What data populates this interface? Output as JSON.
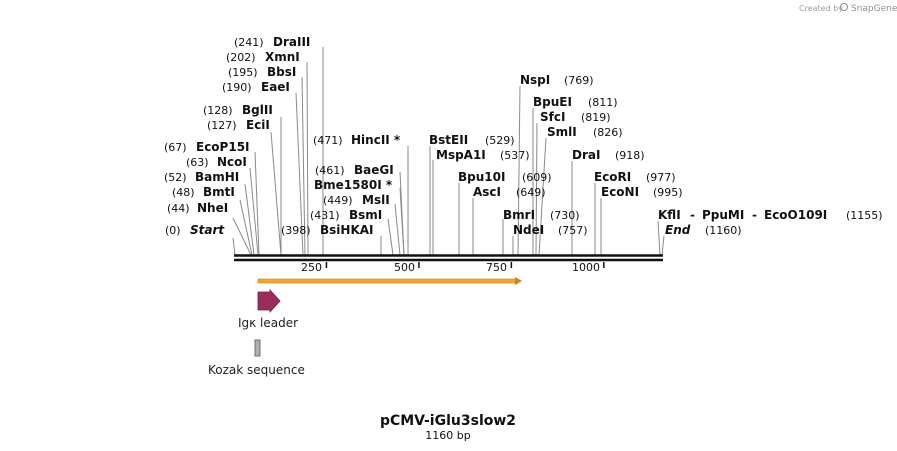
{
  "header": {
    "credit_text": "Created by",
    "brand_text": "SnapGene"
  },
  "plasmid": {
    "name": "pCMV-iGlu3slow2",
    "length_label": "1160 bp",
    "length": 1160
  },
  "ruler": {
    "ticks": [
      {
        "value": 250,
        "label": "250"
      },
      {
        "value": 500,
        "label": "500"
      },
      {
        "value": 750,
        "label": "750"
      },
      {
        "value": 1000,
        "label": "1000"
      }
    ]
  },
  "sites": [
    {
      "name": "Start",
      "pos": 0,
      "pos_label": "(0)",
      "italic": true
    },
    {
      "name": "NheI",
      "pos": 44,
      "pos_label": "(44)"
    },
    {
      "name": "BmtI",
      "pos": 48,
      "pos_label": "(48)"
    },
    {
      "name": "BamHI",
      "pos": 52,
      "pos_label": "(52)"
    },
    {
      "name": "NcoI",
      "pos": 63,
      "pos_label": "(63)"
    },
    {
      "name": "EcoP15I",
      "pos": 67,
      "pos_label": "(67)"
    },
    {
      "name": "EciI",
      "pos": 127,
      "pos_label": "(127)"
    },
    {
      "name": "BglII",
      "pos": 128,
      "pos_label": "(128)"
    },
    {
      "name": "EaeI",
      "pos": 190,
      "pos_label": "(190)"
    },
    {
      "name": "BbsI",
      "pos": 195,
      "pos_label": "(195)"
    },
    {
      "name": "XmnI",
      "pos": 202,
      "pos_label": "(202)"
    },
    {
      "name": "DraIII",
      "pos": 241,
      "pos_label": "(241)"
    },
    {
      "name": "BsiHKAI",
      "pos": 398,
      "pos_label": "(398)"
    },
    {
      "name": "BsmI",
      "pos": 431,
      "pos_label": "(431)"
    },
    {
      "name": "MslI",
      "pos": 449,
      "pos_label": "(449)"
    },
    {
      "name": "Bme1580I *",
      "pos": 461,
      "pos_label": ""
    },
    {
      "name": "BaeGI",
      "pos": 461,
      "pos_label": "(461)"
    },
    {
      "name": "HincII *",
      "pos": 471,
      "pos_label": "(471)"
    },
    {
      "name": "BstEII",
      "pos": 529,
      "pos_label": "(529)"
    },
    {
      "name": "MspA1I",
      "pos": 537,
      "pos_label": "(537)"
    },
    {
      "name": "Bpu10I",
      "pos": 609,
      "pos_label": "(609)"
    },
    {
      "name": "AscI",
      "pos": 649,
      "pos_label": "(649)"
    },
    {
      "name": "BmrI",
      "pos": 730,
      "pos_label": "(730)"
    },
    {
      "name": "NdeI",
      "pos": 757,
      "pos_label": "(757)"
    },
    {
      "name": "NspI",
      "pos": 769,
      "pos_label": "(769)"
    },
    {
      "name": "BpuEI",
      "pos": 811,
      "pos_label": "(811)"
    },
    {
      "name": "SfcI",
      "pos": 819,
      "pos_label": "(819)"
    },
    {
      "name": "SmlI",
      "pos": 826,
      "pos_label": "(826)"
    },
    {
      "name": "DraI",
      "pos": 918,
      "pos_label": "(918)"
    },
    {
      "name": "EcoRI",
      "pos": 977,
      "pos_label": "(977)"
    },
    {
      "name": "EcoNI",
      "pos": 995,
      "pos_label": "(995)"
    },
    {
      "name": "KflI",
      "pos": 1155,
      "pos_label": ""
    },
    {
      "name": "-",
      "pos": 1155,
      "pos_label": ""
    },
    {
      "name": "PpuMI",
      "pos": 1155,
      "pos_label": ""
    },
    {
      "name": "-",
      "pos": 1155,
      "pos_label": ""
    },
    {
      "name": "EcoO109I",
      "pos": 1155,
      "pos_label": "(1155)"
    },
    {
      "name": "End",
      "pos": 1160,
      "pos_label": "(1160)",
      "italic": true
    }
  ],
  "features": [
    {
      "name": "Igκ leader",
      "type": "arrow",
      "color": "#9b2d5e"
    },
    {
      "name": "Kozak sequence",
      "type": "box",
      "color": "#b0b0b0"
    }
  ],
  "orf": {
    "color": "#f0a830",
    "start": 64,
    "end": 775
  }
}
